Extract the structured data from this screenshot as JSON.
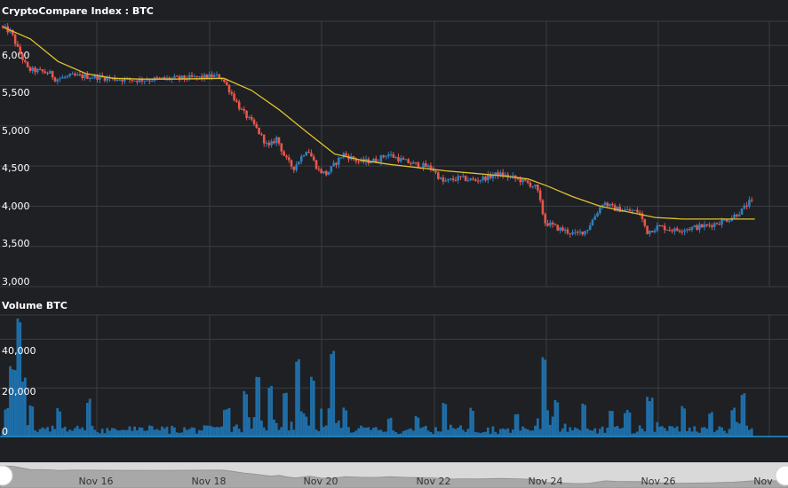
{
  "price_panel": {
    "title": "CryptoCompare Index : BTC",
    "y_ticks": [
      "6,000",
      "5,500",
      "5,000",
      "4,500",
      "4,000",
      "3,500",
      "3,000"
    ]
  },
  "volume_panel": {
    "title": "Volume BTC",
    "y_ticks": [
      "40,000",
      "20,000",
      "0"
    ]
  },
  "navigator": {
    "x_ticks": [
      "Nov 16",
      "Nov 18",
      "Nov 20",
      "Nov 22",
      "Nov 24",
      "Nov 26",
      "Nov"
    ]
  },
  "colors": {
    "background": "#1e2023",
    "grid": "#3a3d42",
    "up_candle": "#2f7fc0",
    "down_candle": "#e8564b",
    "moving_average": "#e2c12f",
    "volume": "#1f6ea8",
    "navigator_bg": "#d9d9d9"
  },
  "chart_data": [
    {
      "type": "candlestick",
      "title": "CryptoCompare Index : BTC",
      "ylim": [
        3000,
        6300
      ],
      "y_ticks": [
        6000,
        5500,
        5000,
        4500,
        4000,
        3500,
        3000
      ],
      "x_ticks": [
        "Nov 16",
        "Nov 18",
        "Nov 20",
        "Nov 22",
        "Nov 24",
        "Nov 26",
        "Nov"
      ],
      "x_range": [
        14.95,
        29.2
      ],
      "grid": true,
      "close_path": [
        [
          15.0,
          6240
        ],
        [
          15.2,
          6160
        ],
        [
          15.32,
          5950
        ],
        [
          15.5,
          5700
        ],
        [
          15.7,
          5680
        ],
        [
          15.9,
          5650
        ],
        [
          16.0,
          5580
        ],
        [
          16.3,
          5620
        ],
        [
          16.7,
          5610
        ],
        [
          17.0,
          5590
        ],
        [
          17.4,
          5570
        ],
        [
          17.8,
          5580
        ],
        [
          18.2,
          5590
        ],
        [
          18.6,
          5600
        ],
        [
          18.9,
          5620
        ],
        [
          19.0,
          5600
        ],
        [
          19.15,
          5440
        ],
        [
          19.35,
          5200
        ],
        [
          19.6,
          5000
        ],
        [
          19.85,
          4730
        ],
        [
          20.0,
          4850
        ],
        [
          20.15,
          4600
        ],
        [
          20.3,
          4470
        ],
        [
          20.55,
          4720
        ],
        [
          20.75,
          4450
        ],
        [
          20.9,
          4400
        ],
        [
          21.2,
          4650
        ],
        [
          21.5,
          4550
        ],
        [
          21.8,
          4570
        ],
        [
          22.0,
          4650
        ],
        [
          22.3,
          4560
        ],
        [
          22.5,
          4520
        ],
        [
          22.8,
          4480
        ],
        [
          23.0,
          4300
        ],
        [
          23.3,
          4350
        ],
        [
          23.6,
          4320
        ],
        [
          24.0,
          4400
        ],
        [
          24.3,
          4350
        ],
        [
          24.5,
          4300
        ],
        [
          24.7,
          4230
        ],
        [
          24.85,
          3800
        ],
        [
          25.1,
          3720
        ],
        [
          25.4,
          3650
        ],
        [
          25.6,
          3700
        ],
        [
          25.9,
          4050
        ],
        [
          26.1,
          3970
        ],
        [
          26.3,
          3950
        ],
        [
          26.55,
          3930
        ],
        [
          26.7,
          3680
        ],
        [
          26.9,
          3750
        ],
        [
          27.2,
          3700
        ],
        [
          27.5,
          3730
        ],
        [
          27.8,
          3760
        ],
        [
          28.0,
          3800
        ],
        [
          28.2,
          3850
        ],
        [
          28.4,
          3940
        ],
        [
          28.55,
          4050
        ]
      ],
      "moving_average": [
        [
          15.0,
          6230
        ],
        [
          15.5,
          6080
        ],
        [
          16.0,
          5800
        ],
        [
          16.5,
          5650
        ],
        [
          17.0,
          5590
        ],
        [
          17.5,
          5580
        ],
        [
          18.0,
          5580
        ],
        [
          18.5,
          5585
        ],
        [
          19.0,
          5590
        ],
        [
          19.5,
          5440
        ],
        [
          20.0,
          5200
        ],
        [
          20.5,
          4920
        ],
        [
          21.0,
          4650
        ],
        [
          21.5,
          4570
        ],
        [
          22.0,
          4520
        ],
        [
          22.5,
          4480
        ],
        [
          23.0,
          4440
        ],
        [
          23.5,
          4410
        ],
        [
          24.0,
          4380
        ],
        [
          24.5,
          4340
        ],
        [
          24.85,
          4250
        ],
        [
          25.3,
          4120
        ],
        [
          25.8,
          4000
        ],
        [
          26.3,
          3930
        ],
        [
          26.8,
          3860
        ],
        [
          27.3,
          3840
        ],
        [
          27.8,
          3840
        ],
        [
          28.2,
          3840
        ],
        [
          28.6,
          3840
        ]
      ]
    },
    {
      "type": "bar",
      "title": "Volume BTC",
      "ylim": [
        0,
        50000
      ],
      "y_ticks": [
        40000,
        20000,
        0
      ],
      "base_level": 2200,
      "spikes": [
        [
          15.05,
          12000
        ],
        [
          15.18,
          30000
        ],
        [
          15.3,
          50000
        ],
        [
          15.38,
          26000
        ],
        [
          15.5,
          14000
        ],
        [
          16.0,
          12000
        ],
        [
          16.55,
          16000
        ],
        [
          17.5,
          4000
        ],
        [
          19.05,
          12000
        ],
        [
          19.4,
          20000
        ],
        [
          19.6,
          25000
        ],
        [
          19.85,
          22000
        ],
        [
          20.1,
          18000
        ],
        [
          20.35,
          36000
        ],
        [
          20.6,
          25000
        ],
        [
          20.95,
          37000
        ],
        [
          21.2,
          12000
        ],
        [
          22.0,
          8000
        ],
        [
          22.5,
          9000
        ],
        [
          23.0,
          14000
        ],
        [
          23.5,
          12000
        ],
        [
          24.3,
          10000
        ],
        [
          24.8,
          36000
        ],
        [
          25.0,
          16000
        ],
        [
          25.5,
          14000
        ],
        [
          26.0,
          12000
        ],
        [
          26.3,
          11000
        ],
        [
          26.7,
          17000
        ],
        [
          27.3,
          13000
        ],
        [
          27.8,
          11000
        ],
        [
          28.2,
          12000
        ],
        [
          28.4,
          18000
        ],
        [
          28.6,
          8000
        ]
      ]
    }
  ]
}
